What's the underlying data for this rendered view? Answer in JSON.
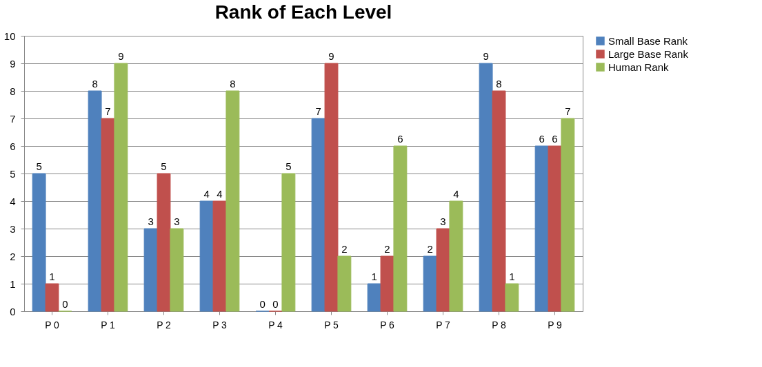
{
  "chart_data": {
    "type": "bar",
    "title": "Rank of Each Level",
    "categories": [
      "P 0",
      "P 1",
      "P 2",
      "P 3",
      "P 4",
      "P 5",
      "P 6",
      "P 7",
      "P 8",
      "P 9"
    ],
    "series": [
      {
        "name": "Small Base Rank",
        "color": "#4f81bd",
        "values": [
          5,
          8,
          3,
          4,
          0,
          7,
          1,
          2,
          9,
          6
        ]
      },
      {
        "name": "Large Base Rank",
        "color": "#c0504d",
        "values": [
          1,
          7,
          5,
          4,
          0,
          9,
          2,
          3,
          8,
          6
        ]
      },
      {
        "name": "Human Rank",
        "color": "#9bbb59",
        "values": [
          0,
          9,
          3,
          8,
          5,
          2,
          6,
          4,
          1,
          7
        ]
      }
    ],
    "ylim": [
      0,
      10
    ],
    "yticks": [
      0,
      1,
      2,
      3,
      4,
      5,
      6,
      7,
      8,
      9,
      10
    ],
    "grid": "y",
    "legend": "right",
    "data_labels": true
  }
}
